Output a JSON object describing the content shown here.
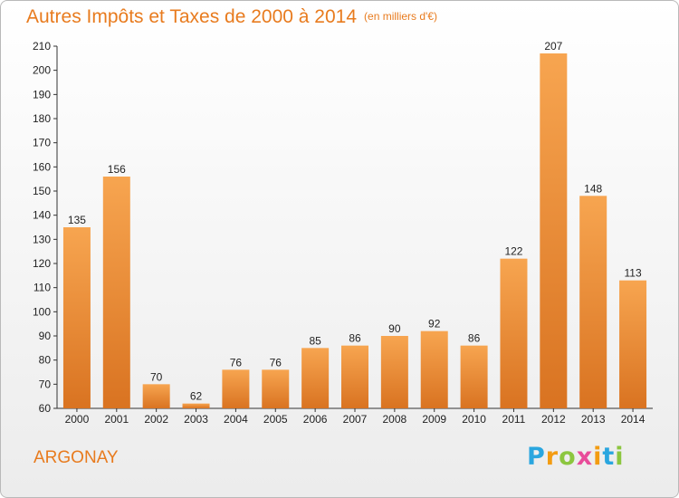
{
  "header": {
    "title": "Autres Impôts et Taxes de 2000 à 2014",
    "unit": "(en milliers d'€)"
  },
  "footer": {
    "city": "ARGONAY",
    "logo_letters": [
      "P",
      "r",
      "o",
      "x",
      "i",
      "t",
      "i"
    ]
  },
  "colors": {
    "accent": "#e87b1e",
    "bar_light": "#f7a550",
    "bar_dark": "#d97321"
  },
  "chart_data": {
    "type": "bar",
    "title": "Autres Impôts et Taxes de 2000 à 2014",
    "subtitle": "(en milliers d'€)",
    "xlabel": "",
    "ylabel": "",
    "categories": [
      "2000",
      "2001",
      "2002",
      "2003",
      "2004",
      "2005",
      "2006",
      "2007",
      "2008",
      "2009",
      "2010",
      "2011",
      "2012",
      "2013",
      "2014"
    ],
    "values": [
      135,
      156,
      70,
      62,
      76,
      76,
      85,
      86,
      90,
      92,
      86,
      122,
      207,
      148,
      113
    ],
    "ylim": [
      60,
      210
    ],
    "yticks": [
      60,
      70,
      80,
      90,
      100,
      110,
      120,
      130,
      140,
      150,
      160,
      170,
      180,
      190,
      200,
      210
    ],
    "grid": false,
    "legend": "none"
  }
}
